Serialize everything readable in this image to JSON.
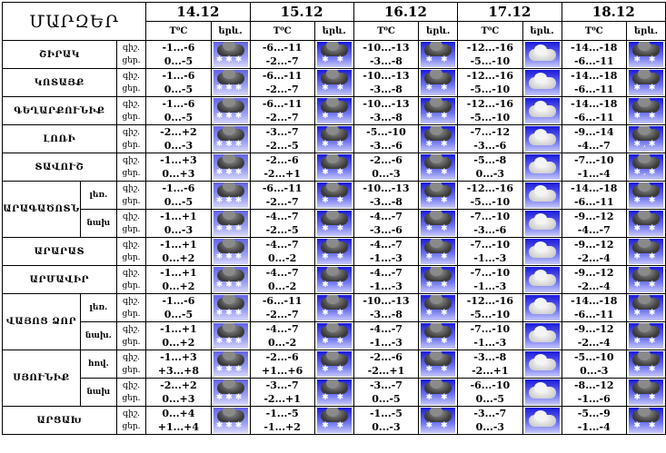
{
  "header": {
    "regions_label": "ՄԱՐԶԵՐ",
    "temp_label": "T⁰C",
    "phen_label": "երև."
  },
  "dates": [
    "14.12",
    "15.12",
    "16.12",
    "17.12",
    "18.12"
  ],
  "icon_legend": {
    "heavy-snow": "heavy-snow-icon",
    "snow": "snow-icon",
    "cloudy": "cloudy-icon",
    "snow-rain": "snow-rain-icon"
  },
  "rows": [
    {
      "region": "ՇԻՐԱԿ",
      "zone": "",
      "night": "գիշ.",
      "day": "ցեր.",
      "cells": [
        [
          "-1...-6",
          "0...-5",
          "heavy-snow"
        ],
        [
          "-6...-11",
          "-2...-7",
          "snow"
        ],
        [
          "-10...-13",
          "-3...-8",
          "snow"
        ],
        [
          "-12...-16",
          "-5...-10",
          "cloudy"
        ],
        [
          "-14...-18",
          "-6...-11",
          "snow"
        ]
      ]
    },
    {
      "region": "ԿՈՏԱՅՔ",
      "zone": "",
      "night": "գիշ.",
      "day": "ցեր.",
      "cells": [
        [
          "-1...-6",
          "0...-5",
          "heavy-snow"
        ],
        [
          "-6...-11",
          "-2...-7",
          "snow"
        ],
        [
          "-10...-13",
          "-3...-8",
          "snow"
        ],
        [
          "-12...-16",
          "-5...-10",
          "cloudy"
        ],
        [
          "-14...-18",
          "-6...-11",
          "snow"
        ]
      ]
    },
    {
      "region": "ԳԵՂԱՐՔՈՒՆԻՔ",
      "zone": "",
      "night": "գիշ.",
      "day": "ցեր.",
      "cells": [
        [
          "-1...-6",
          "0...-5",
          "heavy-snow"
        ],
        [
          "-6...-11",
          "-2...-7",
          "snow"
        ],
        [
          "-10...-13",
          "-3...-8",
          "snow"
        ],
        [
          "-12...-16",
          "-5...-10",
          "cloudy"
        ],
        [
          "-14...-18",
          "-6...-11",
          "snow"
        ]
      ]
    },
    {
      "region": "ԼՈՌԻ",
      "zone": "",
      "night": "գիշ.",
      "day": "ցեր.",
      "cells": [
        [
          "-2...+2",
          "0...-3",
          "heavy-snow"
        ],
        [
          "-3...-7",
          "-2...-5",
          "snow"
        ],
        [
          "-5...-10",
          "-3...-6",
          "snow"
        ],
        [
          "-7...-12",
          "-3...-6",
          "cloudy"
        ],
        [
          "-9...-14",
          "-4...-7",
          "snow-rain"
        ]
      ]
    },
    {
      "region": "ՏԱՎՈՒՇ",
      "zone": "",
      "night": "գիշ.",
      "day": "ցեր.",
      "cells": [
        [
          "-1...+3",
          "0...+3",
          "heavy-snow"
        ],
        [
          "-2...-6",
          "-2...+1",
          "snow"
        ],
        [
          "-2...-6",
          "0...-3",
          "snow"
        ],
        [
          "-5...-8",
          "0...-3",
          "cloudy"
        ],
        [
          "-7...-10",
          "-1...-4",
          "snow-rain"
        ]
      ]
    },
    {
      "region": "ԱՐԱԳԱԾՈՏՆ",
      "span": 2,
      "zone": "լեռ.",
      "night": "գիշ.",
      "day": "ցեր.",
      "cells": [
        [
          "-1...-6",
          "0...-5",
          "heavy-snow"
        ],
        [
          "-6...-11",
          "-2...-7",
          "snow"
        ],
        [
          "-10...-13",
          "-3...-8",
          "snow"
        ],
        [
          "-12...-16",
          "-5...-10",
          "cloudy"
        ],
        [
          "-14...-18",
          "-6...-11",
          "snow"
        ]
      ]
    },
    {
      "region": "",
      "zone": "նախ",
      "night": "գիշ.",
      "day": "ցեր.",
      "cells": [
        [
          "-1...+1",
          "0...-3",
          "heavy-snow"
        ],
        [
          "-4...-7",
          "-2...-5",
          "snow"
        ],
        [
          "-4...-7",
          "-3...-6",
          "snow"
        ],
        [
          "-7...-10",
          "-3...-6",
          "cloudy"
        ],
        [
          "-9...-12",
          "-4...-7",
          "snow"
        ]
      ]
    },
    {
      "region": "ԱՐԱՐԱՏ",
      "zone": "",
      "night": "գիշ.",
      "day": "ցեր.",
      "cells": [
        [
          "-1...+1",
          "0...+2",
          "heavy-snow"
        ],
        [
          "-4...-7",
          "0...-2",
          "snow"
        ],
        [
          "-4...-7",
          "-1...-3",
          "snow"
        ],
        [
          "-7...-10",
          "-1...-3",
          "cloudy"
        ],
        [
          "-9...-12",
          "-2...-4",
          "snow"
        ]
      ]
    },
    {
      "region": "ԱՐՄԱՎԻՐ",
      "zone": "",
      "night": "գիշ.",
      "day": "ցեր.",
      "cells": [
        [
          "-1...+1",
          "0...+2",
          "heavy-snow"
        ],
        [
          "-4...-7",
          "0...-2",
          "snow"
        ],
        [
          "-4...-7",
          "-1...-3",
          "snow"
        ],
        [
          "-7...-10",
          "-1...-3",
          "cloudy"
        ],
        [
          "-9...-12",
          "-2...-4",
          "snow"
        ]
      ]
    },
    {
      "region": "ՎԱՅՈՑ ՁՈՐ",
      "span": 2,
      "zone": "լեռ.",
      "night": "գիշ.",
      "day": "ցեր.",
      "cells": [
        [
          "-1...-6",
          "0...-5",
          "heavy-snow"
        ],
        [
          "-6...-11",
          "-2...-7",
          "snow"
        ],
        [
          "-10...-13",
          "-3...-8",
          "snow"
        ],
        [
          "-12...-16",
          "-5...-10",
          "cloudy"
        ],
        [
          "-14...-18",
          "-6...-11",
          "snow"
        ]
      ]
    },
    {
      "region": "",
      "zone": "նախ.",
      "night": "գիշ.",
      "day": "ցեր.",
      "cells": [
        [
          "-1...+1",
          "0...+2",
          "heavy-snow"
        ],
        [
          "-4...-7",
          "0...-2",
          "snow"
        ],
        [
          "-4...-7",
          "-1...-3",
          "snow"
        ],
        [
          "-7...-10",
          "-1...-3",
          "cloudy"
        ],
        [
          "-9...-12",
          "-2...-4",
          "snow"
        ]
      ]
    },
    {
      "region": "ՍՅՈՒՆԻՔ",
      "span": 2,
      "zone": "հով.",
      "night": "գիշ.",
      "day": "ցեր.",
      "cells": [
        [
          "-1...+3",
          "+3...+8",
          "heavy-snow"
        ],
        [
          "-2...-6",
          "+1...+6",
          "snow"
        ],
        [
          "-2...-6",
          "-2...+1",
          "snow"
        ],
        [
          "-3...-8",
          "-2...+1",
          "cloudy"
        ],
        [
          "-5...-10",
          "0...-3",
          "snow"
        ]
      ]
    },
    {
      "region": "",
      "zone": "նախ",
      "night": "գիշ.",
      "day": "ցեր.",
      "cells": [
        [
          "-2...+2",
          "0...+3",
          "heavy-snow"
        ],
        [
          "-3...-7",
          "-2...+1",
          "snow"
        ],
        [
          "-3...-7",
          "0...-5",
          "snow"
        ],
        [
          "-6...-10",
          "0...-5",
          "cloudy"
        ],
        [
          "-8...-12",
          "-1...-6",
          "snow"
        ]
      ]
    },
    {
      "region": "ԱՐՑԱԽ",
      "zone": "",
      "night": "գիշ.",
      "day": "ցեր.",
      "cells": [
        [
          "0...+4",
          "+1...+4",
          "heavy-snow"
        ],
        [
          "-1...-5",
          "-1...+2",
          "snow"
        ],
        [
          "-1...-5",
          "0...-3",
          "snow"
        ],
        [
          "-3...-7",
          "0...-3",
          "cloudy"
        ],
        [
          "-5...-9",
          "-1...-4",
          "snow"
        ]
      ]
    }
  ]
}
